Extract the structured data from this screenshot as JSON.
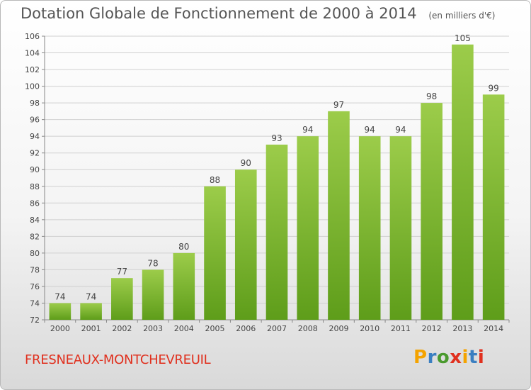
{
  "header": {
    "title": "Dotation Globale de Fonctionnement de 2000 à 2014",
    "unit": "(en milliers d'€)"
  },
  "footer": {
    "commune": "FRESNEAUX-MONTCHEVREUIL",
    "logo": "Proxiti",
    "logo_colors": [
      "#f4a300",
      "#3a7fc1",
      "#4a9a2e",
      "#e0301e",
      "#f4a300",
      "#3a7fc1",
      "#e0301e"
    ]
  },
  "colors": {
    "bar_top": "#9ccc4a",
    "bar_bottom": "#5e9d1a",
    "grid": "#d0d0d0",
    "text": "#444444",
    "commune": "#e0301e"
  },
  "chart_data": {
    "type": "bar",
    "title": "Dotation Globale de Fonctionnement de 2000 à 2014",
    "subtitle": "(en milliers d'€)",
    "categories": [
      "2000",
      "2001",
      "2002",
      "2003",
      "2004",
      "2005",
      "2006",
      "2007",
      "2008",
      "2009",
      "2010",
      "2011",
      "2012",
      "2013",
      "2014"
    ],
    "values": [
      74,
      74,
      77,
      78,
      80,
      88,
      90,
      93,
      94,
      97,
      94,
      94,
      98,
      105,
      99
    ],
    "ylim": [
      72,
      106
    ],
    "ytick_step": 2,
    "grid": true,
    "xlabel": "",
    "ylabel": ""
  }
}
